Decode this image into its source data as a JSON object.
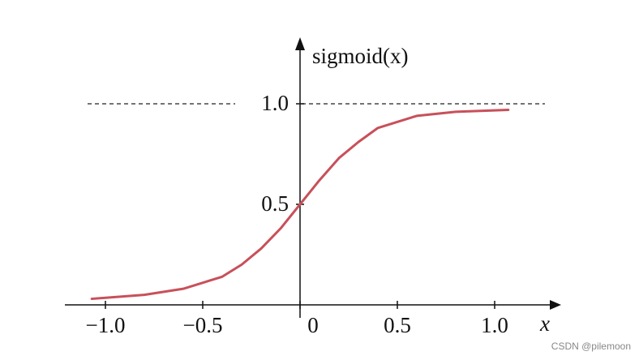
{
  "chart_data": {
    "type": "line",
    "y_label": "sigmoid(x)",
    "x_label": "x",
    "x": [
      -1.07,
      -0.8,
      -0.6,
      -0.4,
      -0.3,
      -0.2,
      -0.1,
      0,
      0.1,
      0.2,
      0.3,
      0.4,
      0.6,
      0.8,
      1.07
    ],
    "series": [
      {
        "name": "sigmoid",
        "color": "#c8505a",
        "values": [
          0.03,
          0.05,
          0.08,
          0.14,
          0.2,
          0.28,
          0.38,
          0.5,
          0.62,
          0.73,
          0.81,
          0.88,
          0.94,
          0.96,
          0.97
        ]
      }
    ],
    "xlim": [
      -1.2,
      1.3
    ],
    "ylim": [
      0,
      1.3
    ],
    "xticks": [
      {
        "value": -1.0,
        "label": "−1.0"
      },
      {
        "value": -0.5,
        "label": "−0.5"
      },
      0,
      0.5,
      {
        "value": 1.0,
        "label": "1.0"
      }
    ],
    "yticks": [
      0.5,
      {
        "value": 1.0,
        "label": "1.0"
      }
    ],
    "reference_line": 1.0,
    "watermark": "CSDN @pilemoon"
  }
}
